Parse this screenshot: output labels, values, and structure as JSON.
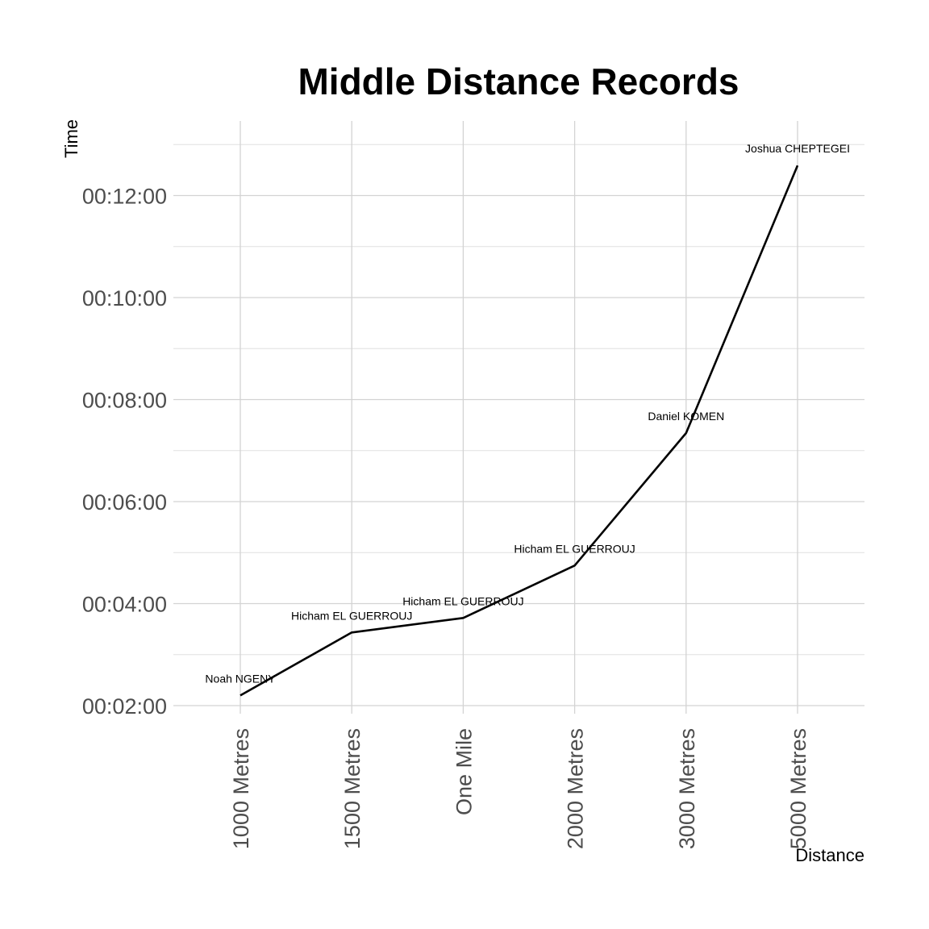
{
  "chart_data": {
    "type": "line",
    "title": "Middle Distance Records",
    "xlabel": "Distance",
    "ylabel": "Time",
    "categories": [
      "1000 Metres",
      "1500 Metres",
      "One Mile",
      "2000 Metres",
      "3000 Metres",
      "5000 Metres"
    ],
    "values_seconds": [
      131.96,
      206.0,
      223.13,
      284.79,
      440.67,
      755.36
    ],
    "point_labels": [
      "Noah NGENY",
      "Hicham EL GUERROUJ",
      "Hicham EL GUERROUJ",
      "Hicham EL GUERROUJ",
      "Daniel KOMEN",
      "Joshua CHEPTEGEI"
    ],
    "y_ticks": [
      "00:02:00",
      "00:04:00",
      "00:06:00",
      "00:08:00",
      "00:10:00",
      "00:12:00"
    ],
    "y_tick_values_seconds": [
      120,
      240,
      360,
      480,
      600,
      720
    ],
    "ylim_seconds": [
      110,
      790
    ],
    "grid": true,
    "legend": "none"
  }
}
